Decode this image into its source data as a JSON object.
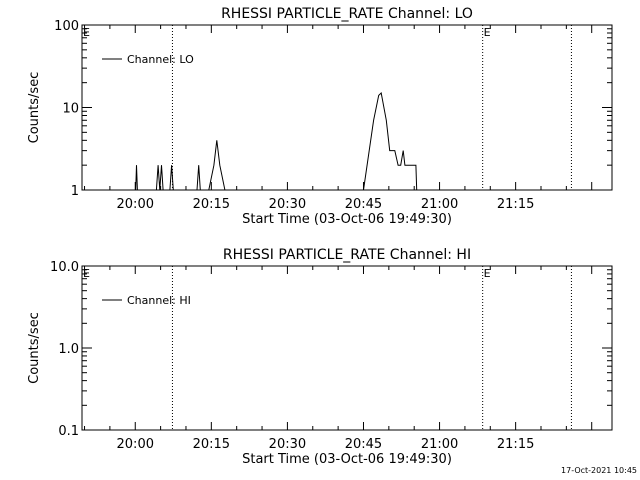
{
  "chart_data": [
    {
      "type": "line",
      "title": "RHESSI PARTICLE_RATE Channel: LO",
      "xlabel": "Start Time (03-Oct-06 19:49:30)",
      "ylabel": "Counts/sec",
      "y_scale": "log",
      "ylim": [
        1,
        100
      ],
      "ytick_labels": [
        "1",
        "10",
        "100"
      ],
      "xlim": [
        "19:49:30",
        "21:34:00"
      ],
      "xtick_labels": [
        "20:00",
        "20:15",
        "20:30",
        "20:45",
        "21:00",
        "21:15"
      ],
      "legend": "Channel: LO",
      "legend_position": "top-left",
      "markers": [
        {
          "time": "19:49:30",
          "label": "E"
        },
        {
          "time": "20:07:20",
          "label": ""
        },
        {
          "time": "21:08:30",
          "label": "E"
        },
        {
          "time": "21:26:00",
          "label": ""
        }
      ],
      "series": [
        {
          "name": "Channel: LO",
          "x": [
            "20:00:05",
            "20:00:15",
            "20:00:25",
            "20:04:10",
            "20:04:30",
            "20:04:50",
            "20:05:10",
            "20:05:30",
            "20:05:50",
            "20:06:50",
            "20:07:10",
            "20:07:30",
            "20:12:10",
            "20:12:30",
            "20:12:50",
            "20:14:30",
            "20:15:30",
            "20:16:05",
            "20:16:40",
            "20:17:40",
            "20:45:00",
            "20:47:00",
            "20:48:00",
            "20:48:30",
            "20:49:30",
            "20:50:10",
            "20:51:10",
            "20:51:50",
            "20:52:20",
            "20:52:50",
            "20:53:10",
            "20:54:20",
            "20:55:20",
            "20:55:30"
          ],
          "y": [
            1,
            2,
            1,
            1,
            2,
            1,
            2,
            1,
            1,
            1,
            2,
            1,
            1,
            2,
            1,
            1,
            2,
            4,
            2,
            1,
            1,
            7,
            14,
            15,
            7,
            3,
            3,
            2,
            2,
            3,
            2,
            2,
            2,
            1
          ]
        }
      ]
    },
    {
      "type": "line",
      "title": "RHESSI PARTICLE_RATE Channel: HI",
      "xlabel": "Start Time (03-Oct-06 19:49:30)",
      "ylabel": "Counts/sec",
      "y_scale": "log",
      "ylim": [
        0.1,
        10
      ],
      "ytick_labels": [
        "0.1",
        "1.0",
        "10.0"
      ],
      "xlim": [
        "19:49:30",
        "21:34:00"
      ],
      "xtick_labels": [
        "20:00",
        "20:15",
        "20:30",
        "20:45",
        "21:00",
        "21:15"
      ],
      "legend": "Channel: HI",
      "legend_position": "top-left",
      "markers": [
        {
          "time": "19:49:30",
          "label": "E"
        },
        {
          "time": "20:07:20",
          "label": ""
        },
        {
          "time": "21:08:30",
          "label": "E"
        },
        {
          "time": "21:26:00",
          "label": ""
        }
      ],
      "series": [
        {
          "name": "Channel: HI",
          "x": [],
          "y": []
        }
      ]
    }
  ],
  "footer": {
    "timestamp": "17-Oct-2021 10:45"
  }
}
